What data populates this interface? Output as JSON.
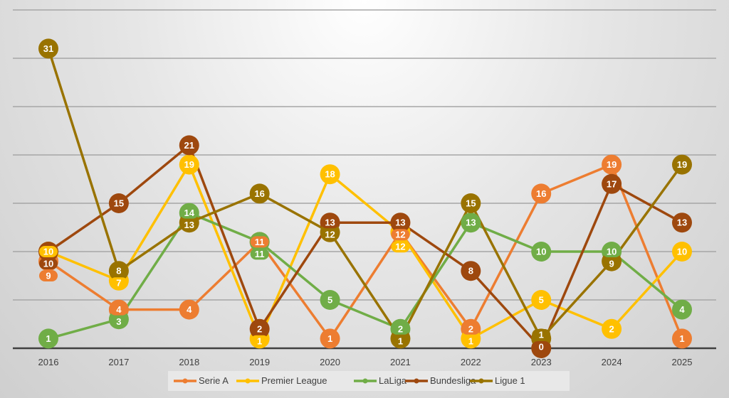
{
  "chart_data": {
    "type": "line",
    "title": "",
    "xlabel": "",
    "ylabel": "",
    "ylim": [
      0,
      35
    ],
    "grid": true,
    "legend": "bottom",
    "categories": [
      "2016",
      "2017",
      "2018",
      "2019",
      "2020",
      "2021",
      "2022",
      "2023",
      "2024",
      "2025"
    ],
    "series": [
      {
        "name": "Serie A",
        "color": "#ED7D31",
        "values": [
          9,
          4,
          4,
          11,
          1,
          12,
          2,
          16,
          19,
          1
        ]
      },
      {
        "name": "Premier League",
        "color": "#FFC000",
        "values": [
          10,
          7,
          19,
          1,
          18,
          12,
          1,
          5,
          2,
          10
        ]
      },
      {
        "name": "LaLiga",
        "color": "#70AD47",
        "values": [
          1,
          3,
          14,
          11,
          5,
          2,
          13,
          10,
          10,
          4
        ]
      },
      {
        "name": "Bundesliga",
        "color": "#9E480E",
        "values": [
          10,
          15,
          21,
          2,
          13,
          13,
          8,
          0,
          17,
          13
        ]
      },
      {
        "name": "Ligue 1",
        "color": "#997300",
        "values": [
          31,
          8,
          13,
          16,
          12,
          1,
          15,
          1,
          9,
          19
        ]
      }
    ]
  }
}
